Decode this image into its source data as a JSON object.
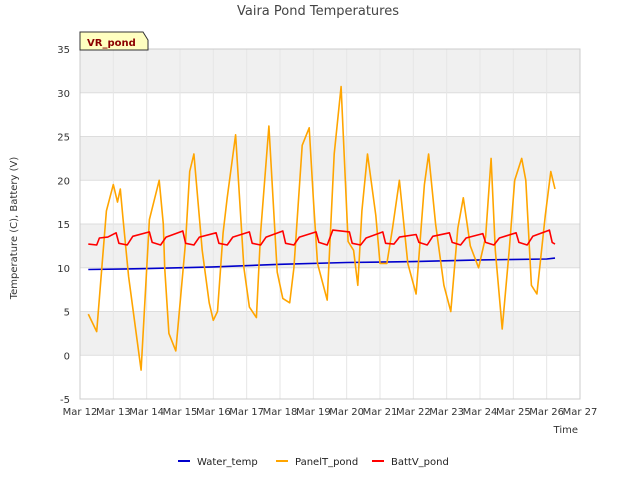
{
  "chart_data": {
    "type": "line",
    "title": "Vaira Pond Temperatures",
    "xlabel": "Time",
    "ylabel": "Temperature (C), Battery (V)",
    "badge": "VR_pond",
    "x_domain": [
      "Mar 12",
      "Mar 27"
    ],
    "ylim": [
      -5,
      35
    ],
    "yticks": [
      -5,
      0,
      5,
      10,
      15,
      20,
      25,
      30,
      35
    ],
    "xticks": [
      "Mar 12",
      "Mar 13",
      "Mar 14",
      "Mar 15",
      "Mar 16",
      "Mar 17",
      "Mar 18",
      "Mar 19",
      "Mar 20",
      "Mar 21",
      "Mar 22",
      "Mar 23",
      "Mar 24",
      "Mar 25",
      "Mar 26",
      "Mar 27"
    ],
    "grid": true,
    "legend_position": "bottom",
    "series": [
      {
        "name": "Water_temp",
        "color": "#0000cc",
        "x": [
          "Mar 12 06:00",
          "Mar 14 00:00",
          "Mar 16 00:00",
          "Mar 18 00:00",
          "Mar 20 00:00",
          "Mar 22 00:00",
          "Mar 24 00:00",
          "Mar 26 00:00",
          "Mar 26 06:00"
        ],
        "y": [
          9.8,
          9.9,
          10.1,
          10.4,
          10.6,
          10.7,
          10.9,
          11.0,
          11.1
        ]
      },
      {
        "name": "PanelT_pond",
        "color": "#ffa500",
        "x": [
          "Mar 12 06:00",
          "Mar 12 12:00",
          "Mar 12 19:00",
          "Mar 13 00:00",
          "Mar 13 03:00",
          "Mar 13 05:00",
          "Mar 13 07:00",
          "Mar 13 11:00",
          "Mar 13 16:00",
          "Mar 13 20:00",
          "Mar 14 02:00",
          "Mar 14 09:00",
          "Mar 14 12:00",
          "Mar 14 13:00",
          "Mar 14 16:00",
          "Mar 14 21:00",
          "Mar 15 04:00",
          "Mar 15 07:00",
          "Mar 15 10:00",
          "Mar 15 16:00",
          "Mar 15 21:00",
          "Mar 16 00:00",
          "Mar 16 03:00",
          "Mar 16 07:00",
          "Mar 16 10:00",
          "Mar 16 16:00",
          "Mar 16 22:00",
          "Mar 17 02:00",
          "Mar 17 07:00",
          "Mar 17 10:00",
          "Mar 17 16:00",
          "Mar 17 22:00",
          "Mar 18 02:00",
          "Mar 18 07:00",
          "Mar 18 10:00",
          "Mar 18 16:00",
          "Mar 18 21:00",
          "Mar 19 00:00",
          "Mar 19 03:00",
          "Mar 19 10:00",
          "Mar 19 15:00",
          "Mar 19 20:00",
          "Mar 20 01:00",
          "Mar 20 05:00",
          "Mar 20 08:00",
          "Mar 20 11:00",
          "Mar 20 15:00",
          "Mar 20 21:00",
          "Mar 21 00:00",
          "Mar 21 05:00",
          "Mar 21 09:00",
          "Mar 21 14:00",
          "Mar 21 20:00",
          "Mar 22 02:00",
          "Mar 22 08:00",
          "Mar 22 11:00",
          "Mar 22 16:00",
          "Mar 22 22:00",
          "Mar 23 03:00",
          "Mar 23 08:00",
          "Mar 23 12:00",
          "Mar 23 17:00",
          "Mar 23 23:00",
          "Mar 24 04:00",
          "Mar 24 08:00",
          "Mar 24 11:00",
          "Mar 24 16:00",
          "Mar 24 21:00",
          "Mar 25 01:00",
          "Mar 25 06:00",
          "Mar 25 09:00",
          "Mar 25 13:00",
          "Mar 25 17:00",
          "Mar 25 23:00",
          "Mar 26 03:00",
          "Mar 26 06:00"
        ],
        "y": [
          4.7,
          2.7,
          16.5,
          19.5,
          17.5,
          19.0,
          15.5,
          9.0,
          3.0,
          -1.7,
          15.5,
          20.0,
          15.0,
          10.0,
          2.5,
          0.5,
          13.0,
          21.0,
          23.0,
          12.0,
          6.0,
          4.0,
          5.0,
          14.0,
          18.0,
          25.2,
          10.0,
          5.5,
          4.3,
          14.0,
          26.2,
          9.5,
          6.5,
          6.0,
          10.0,
          24.0,
          26.0,
          18.0,
          10.5,
          6.3,
          23.0,
          30.7,
          13.0,
          12.0,
          8.0,
          16.5,
          23.0,
          16.0,
          10.5,
          10.5,
          14.5,
          20.0,
          10.5,
          7.0,
          19.5,
          23.0,
          15.0,
          8.0,
          5.0,
          14.5,
          18.0,
          12.5,
          10.0,
          13.5,
          22.5,
          12.0,
          3.0,
          12.0,
          20.0,
          22.5,
          20.0,
          8.0,
          7.0,
          16.0,
          21.0,
          19.0
        ]
      },
      {
        "name": "BattV_pond",
        "color": "#ff0000",
        "x": [
          "Mar 12 06:00",
          "Mar 12 12:00",
          "Mar 12 14:00",
          "Mar 12 20:00",
          "Mar 13 02:00",
          "Mar 13 04:00",
          "Mar 13 10:00",
          "Mar 13 14:00",
          "Mar 14 02:00",
          "Mar 14 04:00",
          "Mar 14 10:00",
          "Mar 14 14:00",
          "Mar 15 02:00",
          "Mar 15 04:00",
          "Mar 15 10:00",
          "Mar 15 14:00",
          "Mar 16 02:00",
          "Mar 16 04:00",
          "Mar 16 10:00",
          "Mar 16 14:00",
          "Mar 17 02:00",
          "Mar 17 04:00",
          "Mar 17 10:00",
          "Mar 17 14:00",
          "Mar 18 02:00",
          "Mar 18 04:00",
          "Mar 18 10:00",
          "Mar 18 14:00",
          "Mar 19 02:00",
          "Mar 19 04:00",
          "Mar 19 10:00",
          "Mar 19 14:00",
          "Mar 20 02:00",
          "Mar 20 04:00",
          "Mar 20 10:00",
          "Mar 20 14:00",
          "Mar 21 02:00",
          "Mar 21 04:00",
          "Mar 21 10:00",
          "Mar 21 14:00",
          "Mar 22 02:00",
          "Mar 22 04:00",
          "Mar 22 10:00",
          "Mar 22 14:00",
          "Mar 23 02:00",
          "Mar 23 04:00",
          "Mar 23 10:00",
          "Mar 23 14:00",
          "Mar 24 02:00",
          "Mar 24 04:00",
          "Mar 24 10:00",
          "Mar 24 14:00",
          "Mar 25 02:00",
          "Mar 25 04:00",
          "Mar 25 10:00",
          "Mar 25 14:00",
          "Mar 26 02:00",
          "Mar 26 04:00",
          "Mar 26 06:00"
        ],
        "y": [
          12.7,
          12.6,
          13.4,
          13.5,
          14.0,
          12.8,
          12.6,
          13.6,
          14.1,
          12.9,
          12.6,
          13.5,
          14.2,
          12.8,
          12.6,
          13.5,
          14.0,
          12.8,
          12.6,
          13.5,
          14.1,
          12.8,
          12.6,
          13.5,
          14.2,
          12.8,
          12.6,
          13.5,
          14.1,
          12.9,
          12.6,
          14.3,
          14.1,
          12.8,
          12.6,
          13.4,
          14.1,
          12.8,
          12.7,
          13.5,
          13.8,
          12.9,
          12.6,
          13.6,
          14.0,
          12.9,
          12.6,
          13.4,
          13.9,
          12.9,
          12.6,
          13.4,
          14.0,
          12.9,
          12.6,
          13.6,
          14.3,
          12.9,
          12.7
        ]
      }
    ]
  }
}
